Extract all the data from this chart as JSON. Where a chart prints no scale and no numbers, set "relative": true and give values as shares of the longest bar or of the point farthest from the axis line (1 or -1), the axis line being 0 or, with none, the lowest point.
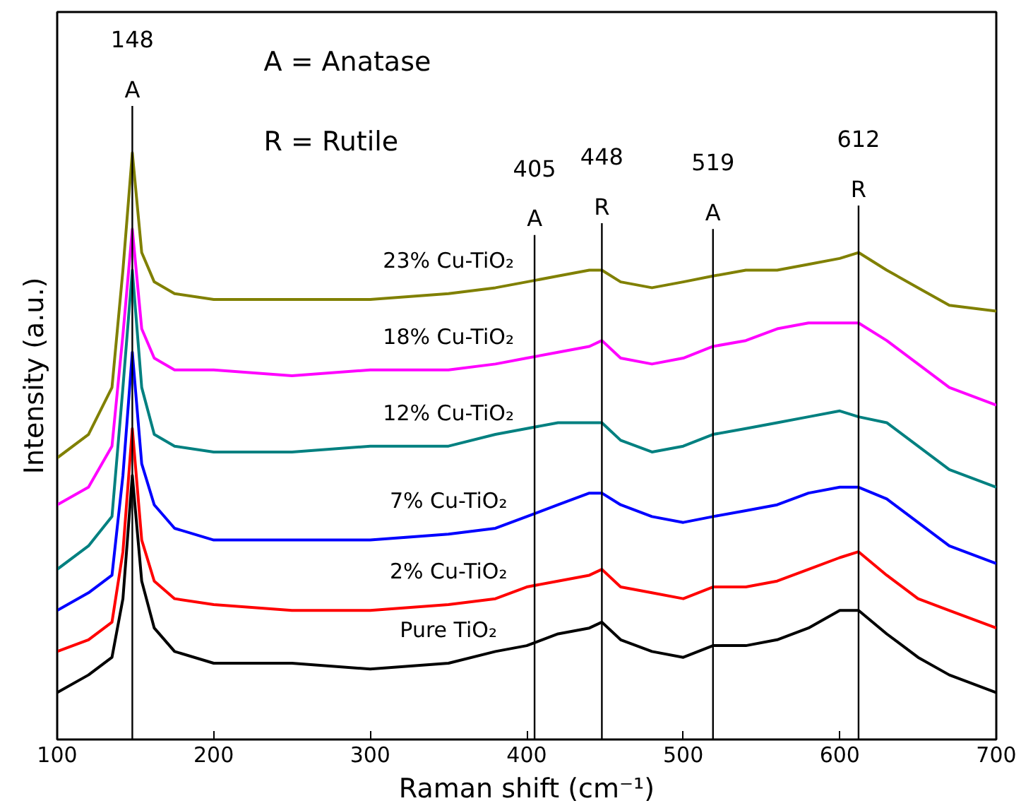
{
  "chart_data": {
    "type": "line",
    "relative": true,
    "xlabel": "Raman shift (cm⁻¹)",
    "ylabel": "Intensity (a.u.)",
    "xlim": [
      100,
      700
    ],
    "xticks": [
      100,
      200,
      300,
      400,
      500,
      600,
      700
    ],
    "grid": false,
    "x": [
      100,
      120,
      135,
      142,
      148,
      154,
      162,
      175,
      200,
      250,
      300,
      350,
      380,
      400,
      420,
      440,
      448,
      460,
      480,
      500,
      519,
      540,
      560,
      580,
      600,
      612,
      630,
      650,
      670,
      700
    ],
    "series": [
      {
        "name": "Pure TiO₂",
        "color": "#000000",
        "values": [
          0.08,
          0.11,
          0.14,
          0.24,
          0.45,
          0.27,
          0.19,
          0.15,
          0.13,
          0.13,
          0.12,
          0.13,
          0.15,
          0.16,
          0.18,
          0.19,
          0.2,
          0.17,
          0.15,
          0.14,
          0.16,
          0.16,
          0.17,
          0.19,
          0.22,
          0.22,
          0.18,
          0.14,
          0.11,
          0.08
        ]
      },
      {
        "name": "2% Cu-TiO₂",
        "color": "#ff0000",
        "values": [
          0.15,
          0.17,
          0.2,
          0.32,
          0.53,
          0.34,
          0.27,
          0.24,
          0.23,
          0.22,
          0.22,
          0.23,
          0.24,
          0.26,
          0.27,
          0.28,
          0.29,
          0.26,
          0.25,
          0.24,
          0.26,
          0.26,
          0.27,
          0.29,
          0.31,
          0.32,
          0.28,
          0.24,
          0.22,
          0.19
        ]
      },
      {
        "name": "7% Cu-TiO₂",
        "color": "#0000ff",
        "values": [
          0.22,
          0.25,
          0.28,
          0.45,
          0.66,
          0.47,
          0.4,
          0.36,
          0.34,
          0.34,
          0.34,
          0.35,
          0.36,
          0.38,
          0.4,
          0.42,
          0.42,
          0.4,
          0.38,
          0.37,
          0.38,
          0.39,
          0.4,
          0.42,
          0.43,
          0.43,
          0.41,
          0.37,
          0.33,
          0.3
        ]
      },
      {
        "name": "12% Cu-TiO₂",
        "color": "#008080",
        "values": [
          0.29,
          0.33,
          0.38,
          0.6,
          0.8,
          0.6,
          0.52,
          0.5,
          0.49,
          0.49,
          0.5,
          0.5,
          0.52,
          0.53,
          0.54,
          0.54,
          0.54,
          0.51,
          0.49,
          0.5,
          0.52,
          0.53,
          0.54,
          0.55,
          0.56,
          0.55,
          0.54,
          0.5,
          0.46,
          0.43
        ]
      },
      {
        "name": "18% Cu-TiO₂",
        "color": "#ff00ff",
        "values": [
          0.4,
          0.43,
          0.5,
          0.69,
          0.87,
          0.7,
          0.65,
          0.63,
          0.63,
          0.62,
          0.63,
          0.63,
          0.64,
          0.65,
          0.66,
          0.67,
          0.68,
          0.65,
          0.64,
          0.65,
          0.67,
          0.68,
          0.7,
          0.71,
          0.71,
          0.71,
          0.68,
          0.64,
          0.6,
          0.57
        ]
      },
      {
        "name": "23% Cu-TiO₂",
        "color": "#808000",
        "values": [
          0.48,
          0.52,
          0.6,
          0.8,
          1.0,
          0.83,
          0.78,
          0.76,
          0.75,
          0.75,
          0.75,
          0.76,
          0.77,
          0.78,
          0.79,
          0.8,
          0.8,
          0.78,
          0.77,
          0.78,
          0.79,
          0.8,
          0.8,
          0.81,
          0.82,
          0.83,
          0.8,
          0.77,
          0.74,
          0.73
        ]
      }
    ],
    "ref_lines": [
      {
        "axis": "x",
        "value": 148,
        "label": "A",
        "color": "#000000"
      },
      {
        "axis": "x",
        "value": 405,
        "label": "A",
        "color": "#000000"
      },
      {
        "axis": "x",
        "value": 448,
        "label": "R",
        "color": "#000000"
      },
      {
        "axis": "x",
        "value": 519,
        "label": "A",
        "color": "#000000"
      },
      {
        "axis": "x",
        "value": 612,
        "label": "R",
        "color": "#000000"
      }
    ],
    "annotations": [
      "148",
      "405",
      "448",
      "519",
      "612",
      "A = Anatase",
      "R = Rutile"
    ]
  }
}
